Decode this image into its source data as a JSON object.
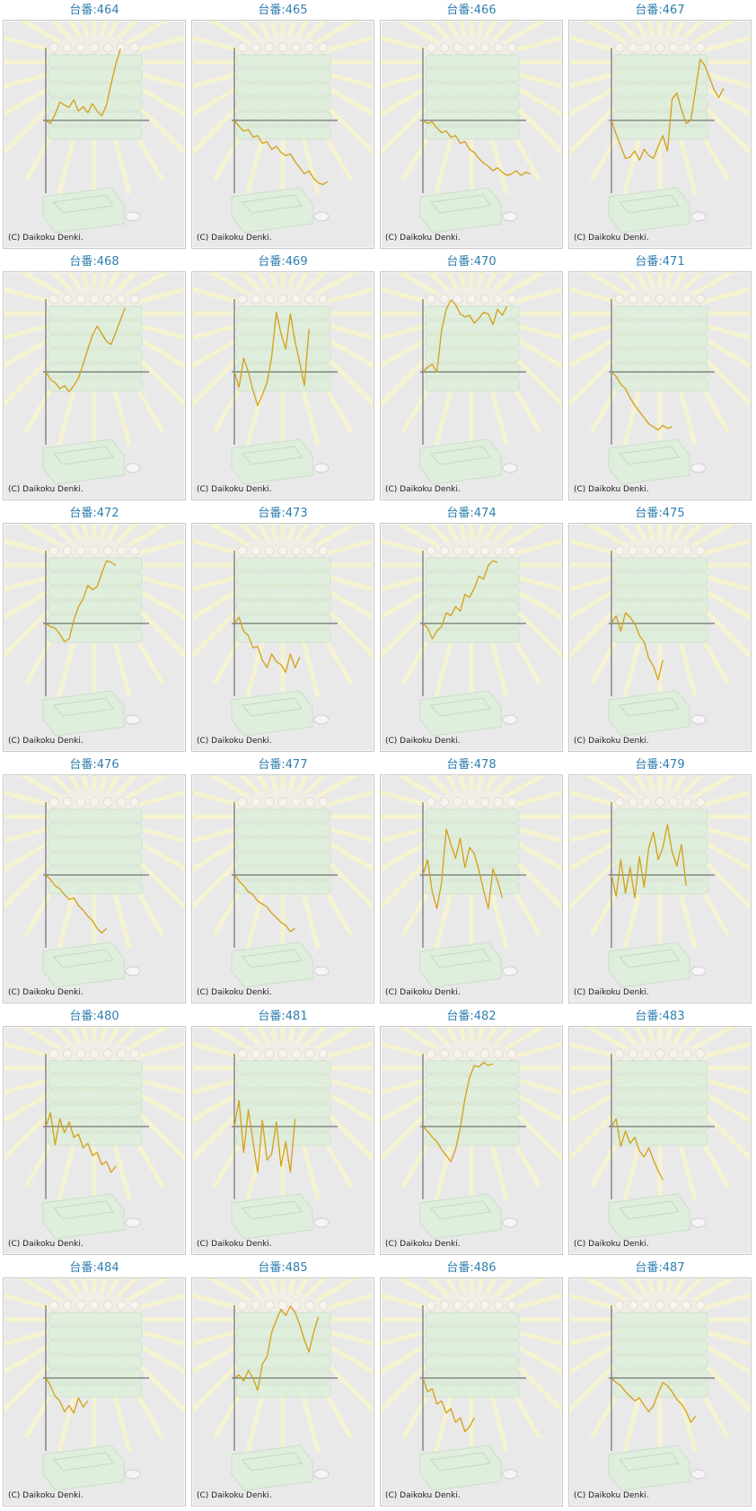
{
  "copyright": "(C) Daikoku Denki.",
  "colors": {
    "title": "#2f7fb0",
    "line": "#d4a017",
    "axis": "#555555",
    "background": "#e9e9e9",
    "machine_art": "#dfeedd",
    "rays": "#f6f4cf"
  },
  "machines": [
    {
      "label": "台番:464",
      "trend": [
        0,
        -4,
        8,
        24,
        20,
        17,
        27,
        12,
        18,
        10,
        22,
        12,
        6,
        20,
        48,
        74,
        94
      ]
    },
    {
      "label": "台番:465",
      "trend": [
        0,
        -8,
        -14,
        -12,
        -22,
        -20,
        -30,
        -28,
        -38,
        -34,
        -42,
        -46,
        -44,
        -54,
        -62,
        -70,
        -66,
        -76,
        -82,
        -84,
        -80
      ]
    },
    {
      "label": "台番:466",
      "trend": [
        0,
        -4,
        -2,
        -10,
        -16,
        -14,
        -22,
        -20,
        -30,
        -28,
        -38,
        -42,
        -50,
        -56,
        -60,
        -66,
        -62,
        -68,
        -72,
        -70,
        -66,
        -72,
        -68,
        -70
      ]
    },
    {
      "label": "台番:467",
      "trend": [
        0,
        -18,
        -34,
        -50,
        -48,
        -40,
        -52,
        -38,
        -46,
        -50,
        -34,
        -20,
        -40,
        28,
        36,
        14,
        -4,
        0,
        40,
        80,
        72,
        56,
        40,
        30,
        42
      ]
    },
    {
      "label": "台番:468",
      "trend": [
        0,
        -10,
        -14,
        -22,
        -18,
        -26,
        -18,
        -8,
        10,
        30,
        48,
        60,
        50,
        40,
        36,
        52,
        68,
        84
      ]
    },
    {
      "label": "台番:469",
      "trend": [
        0,
        -20,
        18,
        0,
        -24,
        -44,
        -30,
        -14,
        20,
        78,
        50,
        30,
        76,
        40,
        12,
        -18,
        56
      ]
    },
    {
      "label": "台番:470",
      "trend": [
        0,
        6,
        10,
        0,
        54,
        82,
        94,
        88,
        76,
        72,
        74,
        64,
        70,
        78,
        76,
        62,
        82,
        74,
        86
      ]
    },
    {
      "label": "台番:471",
      "trend": [
        0,
        -6,
        -16,
        -22,
        -34,
        -44,
        -52,
        -60,
        -68,
        -72,
        -76,
        -70,
        -74,
        -72
      ]
    },
    {
      "label": "台番:472",
      "trend": [
        0,
        -4,
        -6,
        -14,
        -24,
        -20,
        4,
        22,
        32,
        50,
        44,
        48,
        66,
        82,
        80,
        76
      ]
    },
    {
      "label": "台番:473",
      "trend": [
        0,
        8,
        -10,
        -16,
        -32,
        -30,
        -48,
        -58,
        -40,
        -50,
        -54,
        -64,
        -40,
        -58,
        -44
      ]
    },
    {
      "label": "台番:474",
      "trend": [
        0,
        -6,
        -20,
        -10,
        -4,
        14,
        10,
        22,
        16,
        38,
        34,
        46,
        62,
        58,
        76,
        82,
        80
      ]
    },
    {
      "label": "台番:475",
      "trend": [
        0,
        10,
        -10,
        14,
        8,
        0,
        -16,
        -24,
        -46,
        -56,
        -74,
        -48
      ]
    },
    {
      "label": "台番:476",
      "trend": [
        0,
        -6,
        -14,
        -18,
        -26,
        -32,
        -30,
        -40,
        -46,
        -54,
        -60,
        -70,
        -76,
        -70
      ]
    },
    {
      "label": "台番:477",
      "trend": [
        0,
        -8,
        -14,
        -22,
        -26,
        -34,
        -38,
        -42,
        -50,
        -56,
        -62,
        -66,
        -74,
        -70
      ]
    },
    {
      "label": "台番:478",
      "trend": [
        0,
        20,
        -22,
        -44,
        -10,
        60,
        40,
        22,
        48,
        10,
        36,
        28,
        6,
        -20,
        -44,
        8,
        -8,
        -30
      ]
    },
    {
      "label": "台番:479",
      "trend": [
        0,
        -28,
        20,
        -24,
        10,
        -30,
        24,
        -16,
        36,
        56,
        20,
        36,
        66,
        30,
        12,
        40,
        -14
      ]
    },
    {
      "label": "台番:480",
      "trend": [
        0,
        18,
        -24,
        10,
        -8,
        6,
        -14,
        -10,
        -28,
        -22,
        -38,
        -34,
        -50,
        -46,
        -60,
        -52
      ]
    },
    {
      "label": "台番:481",
      "trend": [
        0,
        34,
        -34,
        22,
        -20,
        -60,
        8,
        -44,
        -36,
        6,
        -52,
        -20,
        -60,
        10
      ]
    },
    {
      "label": "台番:482",
      "trend": [
        0,
        -6,
        -14,
        -20,
        -30,
        -38,
        -46,
        -30,
        -2,
        36,
        64,
        80,
        78,
        84,
        80,
        82
      ]
    },
    {
      "label": "台番:483",
      "trend": [
        0,
        10,
        -26,
        -6,
        -22,
        -14,
        -32,
        -40,
        -28,
        -44,
        -58,
        -70
      ]
    },
    {
      "label": "台番:484",
      "trend": [
        0,
        -10,
        -24,
        -30,
        -44,
        -36,
        -46,
        -26,
        -38,
        -30
      ]
    },
    {
      "label": "台番:485",
      "trend": [
        0,
        4,
        -4,
        10,
        0,
        -16,
        18,
        28,
        60,
        76,
        90,
        82,
        94,
        86,
        70,
        50,
        34,
        60,
        80
      ]
    },
    {
      "label": "台番:486",
      "trend": [
        0,
        -18,
        -14,
        -34,
        -30,
        -46,
        -40,
        -58,
        -52,
        -70,
        -64,
        -52
      ]
    },
    {
      "label": "台番:487",
      "trend": [
        0,
        -6,
        -10,
        -18,
        -24,
        -30,
        -26,
        -36,
        -44,
        -36,
        -20,
        -6,
        -10,
        -18,
        -28,
        -34,
        -44,
        -58,
        -50
      ]
    }
  ]
}
